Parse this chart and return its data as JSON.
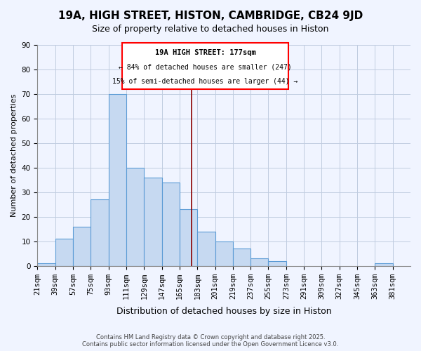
{
  "title": "19A, HIGH STREET, HISTON, CAMBRIDGE, CB24 9JD",
  "subtitle": "Size of property relative to detached houses in Histon",
  "xlabel": "Distribution of detached houses by size in Histon",
  "ylabel": "Number of detached properties",
  "bar_values": [
    1,
    11,
    16,
    27,
    70,
    40,
    36,
    34,
    23,
    14,
    10,
    7,
    3,
    2,
    0,
    0,
    0,
    0,
    0,
    1
  ],
  "bin_labels": [
    "21sqm",
    "39sqm",
    "57sqm",
    "75sqm",
    "93sqm",
    "111sqm",
    "129sqm",
    "147sqm",
    "165sqm",
    "183sqm",
    "201sqm",
    "219sqm",
    "237sqm",
    "255sqm",
    "273sqm",
    "291sqm",
    "309sqm",
    "327sqm",
    "345sqm",
    "363sqm",
    "381sqm"
  ],
  "bin_edges": [
    21,
    39,
    57,
    75,
    93,
    111,
    129,
    147,
    165,
    183,
    201,
    219,
    237,
    255,
    273,
    291,
    309,
    327,
    345,
    363,
    381
  ],
  "bar_color": "#c6d9f1",
  "bar_edge_color": "#5b9bd5",
  "property_line_x": 177,
  "ylim": [
    0,
    90
  ],
  "yticks": [
    0,
    10,
    20,
    30,
    40,
    50,
    60,
    70,
    80,
    90
  ],
  "annotation_title": "19A HIGH STREET: 177sqm",
  "annotation_line1": "← 84% of detached houses are smaller (247)",
  "annotation_line2": "15% of semi-detached houses are larger (44) →",
  "footer_line1": "Contains HM Land Registry data © Crown copyright and database right 2025.",
  "footer_line2": "Contains public sector information licensed under the Open Government Licence v3.0.",
  "bg_color": "#f0f4ff",
  "grid_color": "#c0cce0"
}
